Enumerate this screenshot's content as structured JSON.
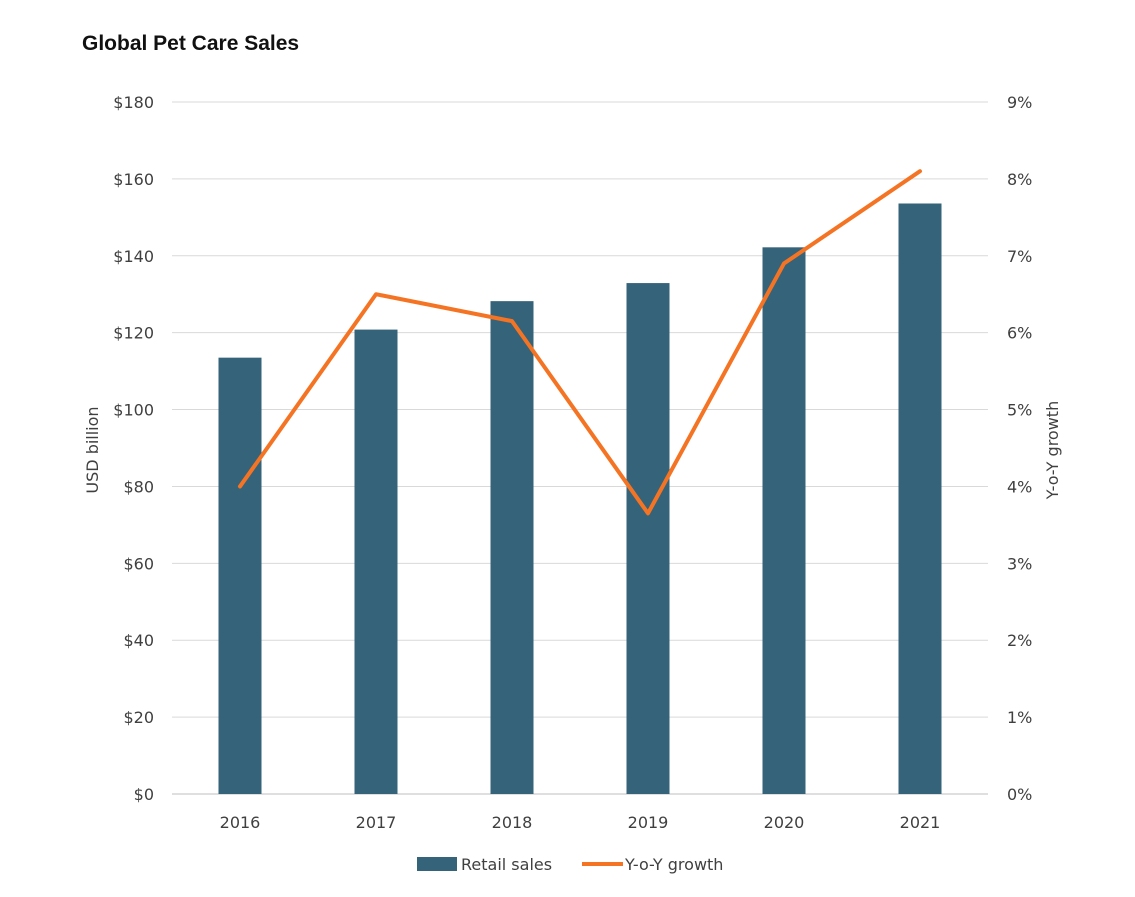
{
  "chart_data": {
    "type": "bar",
    "title": "Global Pet Care Sales",
    "categories": [
      "2016",
      "2017",
      "2018",
      "2019",
      "2020",
      "2021"
    ],
    "series": [
      {
        "name": "Retail sales",
        "type": "bar",
        "axis": "left",
        "color": "#35637A",
        "values": [
          113.5,
          120.8,
          128.2,
          132.9,
          142.2,
          153.6
        ]
      },
      {
        "name": "Y-o-Y growth",
        "type": "line",
        "axis": "right",
        "color": "#F47424",
        "values": [
          4.0,
          6.5,
          6.15,
          3.65,
          6.9,
          8.1
        ]
      }
    ],
    "ylabel": "USD billion",
    "ylabel_right": "Y-o-Y growth",
    "ylim": [
      0,
      180
    ],
    "ylim_right": [
      0,
      9
    ],
    "y_ticks": [
      "$0",
      "$20",
      "$40",
      "$60",
      "$80",
      "$100",
      "$120",
      "$140",
      "$160",
      "$180"
    ],
    "y_ticks_right": [
      "0%",
      "1%",
      "2%",
      "3%",
      "4%",
      "5%",
      "6%",
      "7%",
      "8%",
      "9%"
    ],
    "grid": true,
    "legend": "bottom"
  }
}
